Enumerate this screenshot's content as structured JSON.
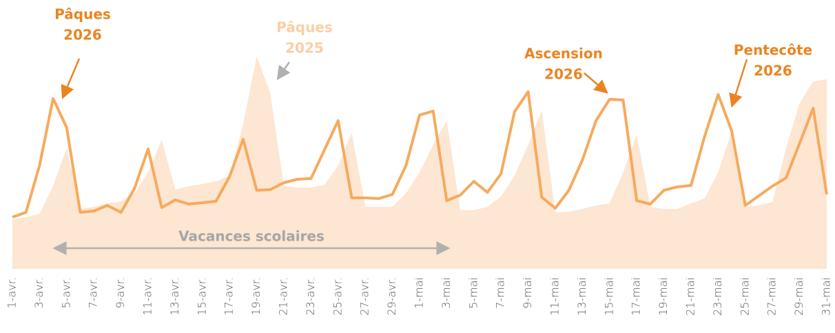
{
  "chart_data": {
    "type": "line",
    "categories": [
      "1-avr.",
      null,
      "3-avr.",
      null,
      "5-avr.",
      null,
      "7-avr.",
      null,
      "9-avr.",
      null,
      "11-avr.",
      null,
      "13-avr.",
      null,
      "15-avr.",
      null,
      "17-avr.",
      null,
      "19-avr.",
      null,
      "21-avr.",
      null,
      "23-avr.",
      null,
      "25-avr.",
      null,
      "27-avr.",
      null,
      "29-avr.",
      null,
      "1-mai",
      null,
      "3-mai",
      null,
      "5-mai",
      null,
      "7-mai",
      null,
      "9-mai",
      null,
      "11-mai",
      null,
      "13-mai",
      null,
      "15-mai",
      null,
      "17-mai",
      null,
      "19-mai",
      null,
      "21-mai",
      null,
      "23-mai",
      null,
      "25-mai",
      null,
      "27-mai",
      null,
      "29-mai",
      null,
      "31-mai"
    ],
    "series": [
      {
        "kind": "area",
        "color": "#fde6d2",
        "values": [
          72,
          75,
          80,
          120,
          175,
          87,
          90,
          95,
          98,
          110,
          140,
          187,
          115,
          120,
          123,
          127,
          135,
          210,
          308,
          255,
          120,
          118,
          118,
          122,
          150,
          197,
          90,
          90,
          90,
          110,
          140,
          180,
          215,
          85,
          85,
          90,
          105,
          135,
          180,
          230,
          82,
          83,
          87,
          92,
          95,
          140,
          195,
          90,
          87,
          87,
          95,
          102,
          140,
          200,
          90,
          92,
          97,
          175,
          240,
          272,
          275
        ]
      },
      {
        "kind": "line",
        "color": "#f6aa5c",
        "values": [
          75,
          82,
          150,
          247,
          205,
          82,
          84,
          92,
          82,
          117,
          174,
          89,
          100,
          94,
          96,
          98,
          134,
          188,
          114,
          115,
          125,
          130,
          131,
          173,
          215,
          103,
          103,
          102,
          108,
          150,
          223,
          229,
          99,
          107,
          127,
          111,
          138,
          228,
          257,
          104,
          88,
          114,
          158,
          215,
          246,
          245,
          99,
          94,
          114,
          119,
          121,
          192,
          253,
          200,
          92,
          106,
          120,
          132,
          182,
          233,
          108
        ]
      }
    ],
    "ylim": [
      0,
      310
    ],
    "annotations": [
      {
        "lines": [
          "Pâques",
          "2026"
        ],
        "color": "#ea8420"
      },
      {
        "lines": [
          "Pâques",
          "2025"
        ],
        "color": "#f9cfa4"
      },
      {
        "lines": [
          "Ascension",
          "2026"
        ],
        "color": "#ea8420"
      },
      {
        "lines": [
          "Pentecôte",
          "2026"
        ],
        "color": "#ea8420"
      },
      {
        "lines": [
          "Vacances scolaires"
        ],
        "color": "#a6a6a6"
      }
    ]
  }
}
